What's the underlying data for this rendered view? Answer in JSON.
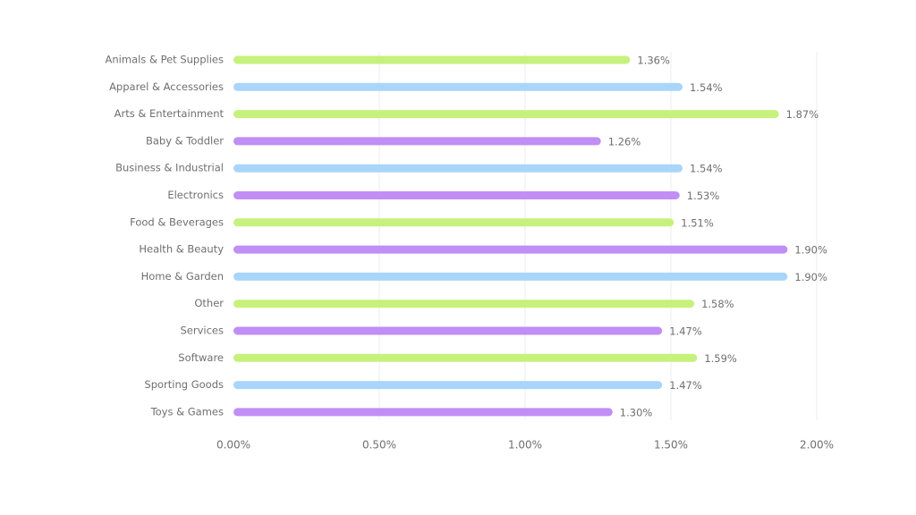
{
  "chart_data": {
    "type": "bar",
    "orientation": "horizontal",
    "categories": [
      "Animals & Pet Supplies",
      "Apparel & Accessories",
      "Arts & Entertainment",
      "Baby & Toddler",
      "Business & Industrial",
      "Electronics",
      "Food & Beverages",
      "Health & Beauty",
      "Home & Garden",
      "Other",
      "Services",
      "Software",
      "Sporting Goods",
      "Toys & Games"
    ],
    "values": [
      1.36,
      1.54,
      1.87,
      1.26,
      1.54,
      1.53,
      1.51,
      1.9,
      1.9,
      1.58,
      1.47,
      1.59,
      1.47,
      1.3
    ],
    "value_labels": [
      "1.36%",
      "1.54%",
      "1.87%",
      "1.26%",
      "1.54%",
      "1.53%",
      "1.51%",
      "1.90%",
      "1.90%",
      "1.58%",
      "1.47%",
      "1.59%",
      "1.47%",
      "1.30%"
    ],
    "colors": [
      "#c6f17c",
      "#a9d5fa",
      "#c6f17c",
      "#c08ef4",
      "#a9d5fa",
      "#c08ef4",
      "#c6f17c",
      "#c08ef4",
      "#a9d5fa",
      "#c6f17c",
      "#c08ef4",
      "#c6f17c",
      "#a9d5fa",
      "#c08ef4"
    ],
    "xlim": [
      0,
      2
    ],
    "xticks": [
      {
        "value": 0,
        "label": "0.00%"
      },
      {
        "value": 0.5,
        "label": "0.50%"
      },
      {
        "value": 1,
        "label": "1.00%"
      },
      {
        "value": 1.5,
        "label": "1.50%"
      },
      {
        "value": 2,
        "label": "2.00%"
      }
    ],
    "grid": true
  }
}
